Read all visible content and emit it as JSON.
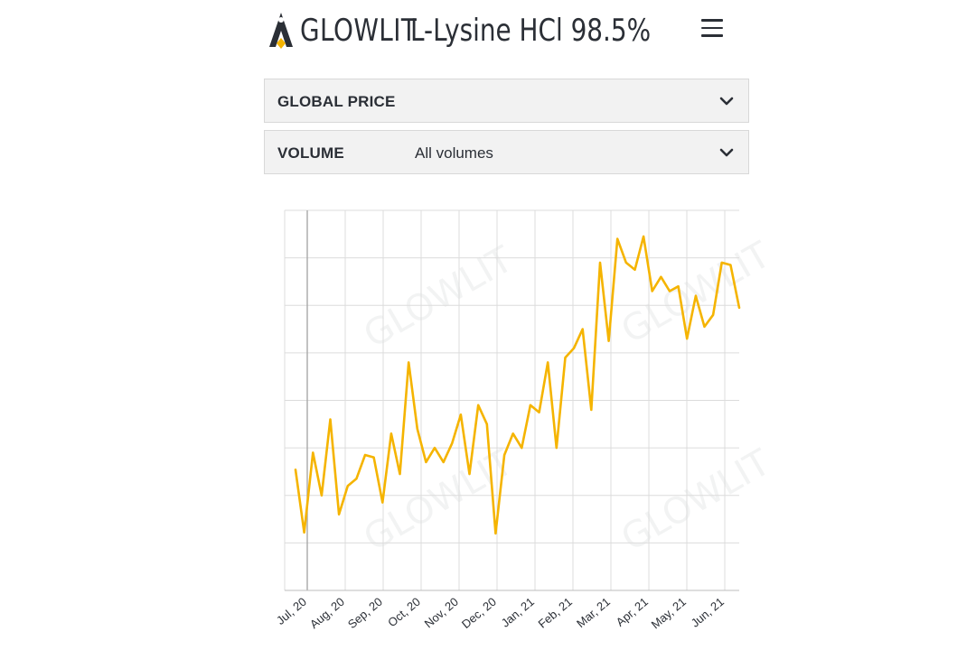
{
  "header": {
    "brand": "GLOWLIT",
    "product_title": "L-Lysine HCl 98.5%",
    "menu_icon": "hamburger-menu-icon",
    "logo_icon": "glowlit-logo-icon"
  },
  "filters": {
    "global_price": {
      "label": "GLOBAL PRICE"
    },
    "volume": {
      "label": "VOLUME",
      "value": "All volumes"
    },
    "chevron_icon": "chevron-down-icon"
  },
  "watermark": "GLOWLIT",
  "colors": {
    "line": "#f5b400",
    "grid": "#dcdcdc",
    "text": "#2b2f36"
  },
  "chart_data": {
    "type": "line",
    "title": "",
    "xlabel": "",
    "ylabel": "",
    "y_tick_labels_visible": false,
    "ylim": [
      0,
      8
    ],
    "grid": true,
    "month_labels": [
      "Jul, 20",
      "Aug, 20",
      "Sep, 20",
      "Oct, 20",
      "Nov, 20",
      "Dec, 20",
      "Jan, 21",
      "Feb, 21",
      "Mar, 21",
      "Apr, 21",
      "May, 21",
      "Jun, 21"
    ],
    "series": [
      {
        "values": [
          2.54,
          1.22,
          2.9,
          2.0,
          3.6,
          1.6,
          2.2,
          2.35,
          2.85,
          2.8,
          1.85,
          3.3,
          2.45,
          4.8,
          3.4,
          2.7,
          3.0,
          2.7,
          3.1,
          3.7,
          2.45,
          3.9,
          3.5,
          1.2,
          2.85,
          3.3,
          3.0,
          3.9,
          3.75,
          4.8,
          3.0,
          4.9,
          5.1,
          5.5,
          3.8,
          6.9,
          5.25,
          7.4,
          6.9,
          6.75,
          7.45,
          6.3,
          6.6,
          6.3,
          6.4,
          5.3,
          6.2,
          5.55,
          5.8,
          6.9,
          6.85,
          5.95
        ]
      }
    ]
  }
}
